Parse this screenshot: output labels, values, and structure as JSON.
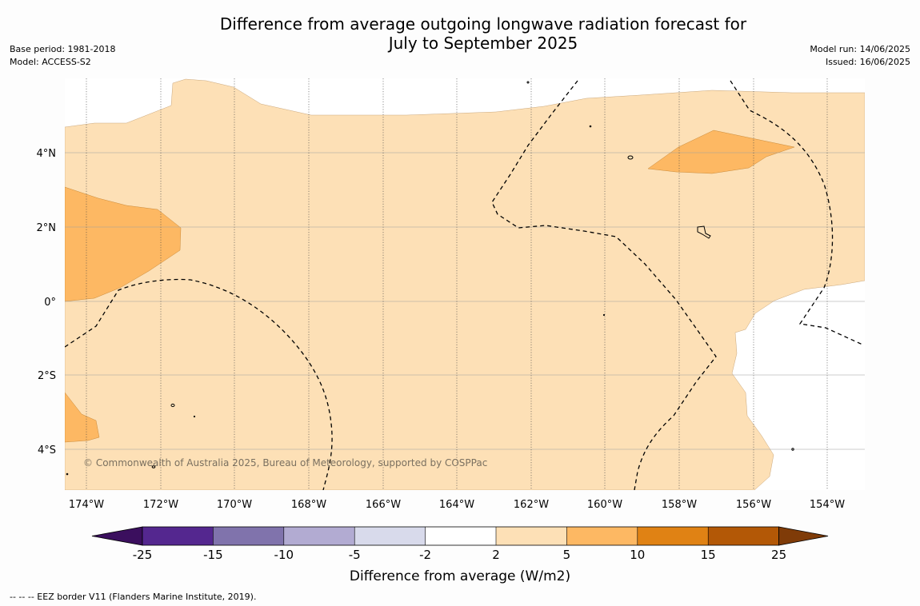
{
  "title": {
    "line1": "Difference from average outgoing longwave radiation forecast for",
    "line2": "July to September 2025"
  },
  "meta_left": {
    "base_period": "Base period: 1981-2018",
    "model": "Model: ACCESS-S2"
  },
  "meta_right": {
    "model_run": "Model run: 14/06/2025",
    "issued": "Issued: 16/06/2025"
  },
  "map": {
    "copyright": "© Commonwealth of Australia 2025, Bureau of Meteorology, supported by COSPPac",
    "lon_labels": [
      "174°W",
      "172°W",
      "170°W",
      "168°W",
      "166°W",
      "164°W",
      "162°W",
      "160°W",
      "158°W",
      "156°W",
      "154°W"
    ],
    "lat_labels": [
      "4°N",
      "2°N",
      "0°",
      "2°S",
      "4°S"
    ],
    "extent": {
      "lon_west": -174.6,
      "lon_east": -153.0,
      "lat_south": -5.1,
      "lat_north": 5.8
    }
  },
  "colorbar": {
    "labels": [
      "-25",
      "-15",
      "-10",
      "-5",
      "-2",
      "2",
      "5",
      "10",
      "15",
      "25"
    ],
    "colors": [
      "#3b0f5e",
      "#54278f",
      "#8073ac",
      "#b2abd2",
      "#d8daeb",
      "#ffffff",
      "#fde0b6",
      "#fdb863",
      "#e08214",
      "#b35806",
      "#7f3b08"
    ],
    "label": "Difference from average (W/m2)"
  },
  "footnote": "--  --  -- EEZ border V11 (Flanders Marine Institute, 2019)."
}
